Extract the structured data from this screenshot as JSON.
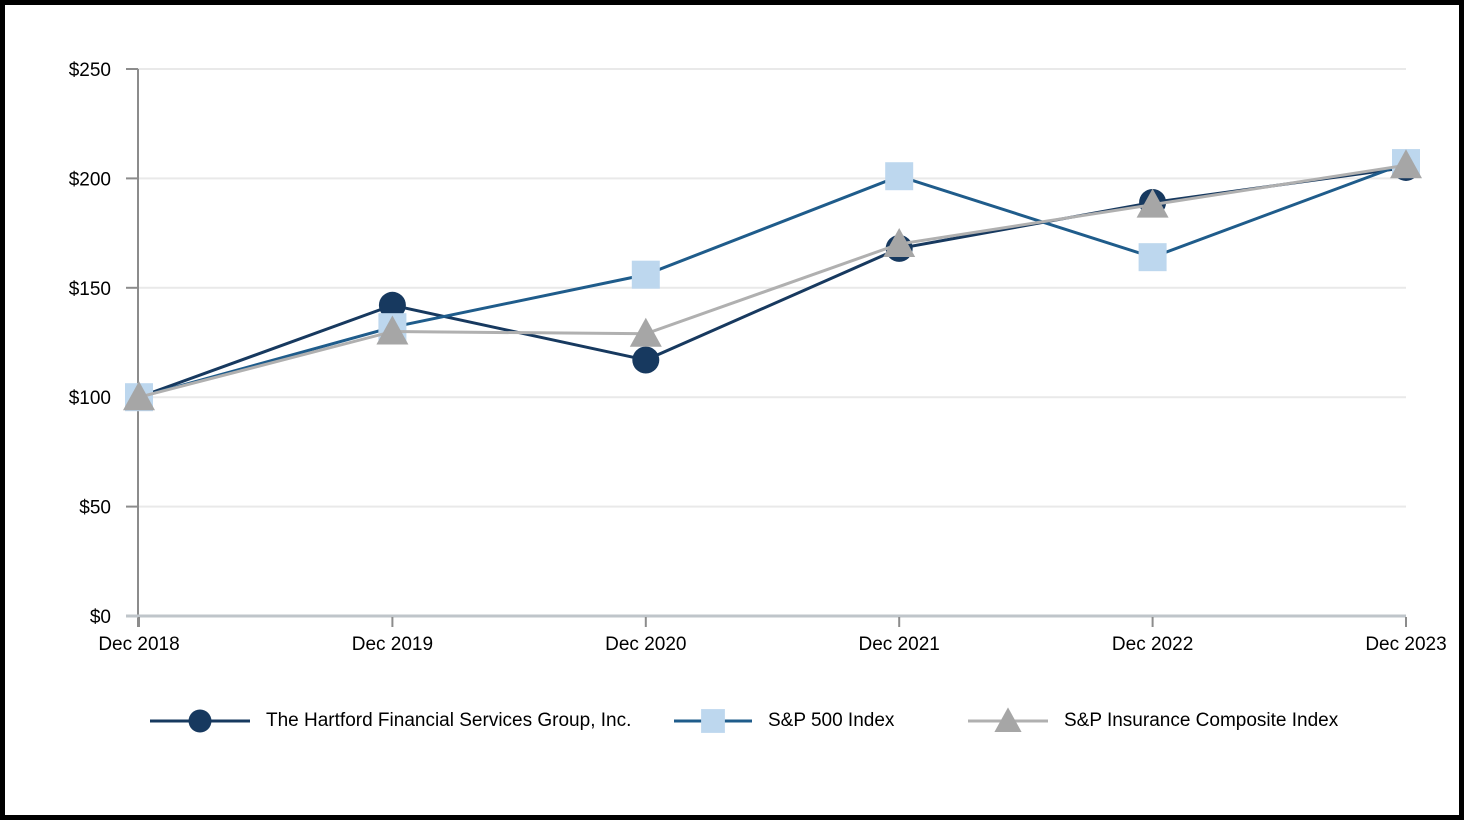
{
  "chart_data": {
    "type": "line",
    "title": "",
    "xlabel": "",
    "ylabel": "",
    "categories": [
      "Dec 2018",
      "Dec 2019",
      "Dec 2020",
      "Dec 2021",
      "Dec 2022",
      "Dec 2023"
    ],
    "series": [
      {
        "name": "The Hartford Financial Services Group, Inc.",
        "marker": "circle",
        "values": [
          100,
          142,
          117,
          168,
          189,
          205
        ],
        "line_color": "#17395F",
        "marker_color": "#17395F"
      },
      {
        "name": "S&P 500 Index",
        "marker": "square",
        "values": [
          100,
          132,
          156,
          201,
          164,
          207
        ],
        "line_color": "#1F5C8B",
        "marker_color": "#BDD7EE"
      },
      {
        "name": "S&P Insurance Composite Index",
        "marker": "triangle",
        "values": [
          100,
          130,
          129,
          170,
          188,
          206
        ],
        "line_color": "#B0B0B0",
        "marker_color": "#A6A6A6"
      }
    ],
    "y_ticks": [
      {
        "label": "$0",
        "value": 0
      },
      {
        "label": "$50",
        "value": 50
      },
      {
        "label": "$100",
        "value": 100
      },
      {
        "label": "$150",
        "value": 150
      },
      {
        "label": "$200",
        "value": 200
      },
      {
        "label": "$250",
        "value": 250
      }
    ],
    "ylim": [
      0,
      250
    ],
    "grid": "horizontal",
    "legend_position": "bottom"
  },
  "colors": {
    "background": "#FFFFFF",
    "frame_border": "#000000",
    "gridline": "#E9E9E9",
    "y_axis_line": "#8C8C8C",
    "x_axis_line": "#BFC5CA",
    "tick": "#8C8C8C",
    "text": "#000000"
  }
}
